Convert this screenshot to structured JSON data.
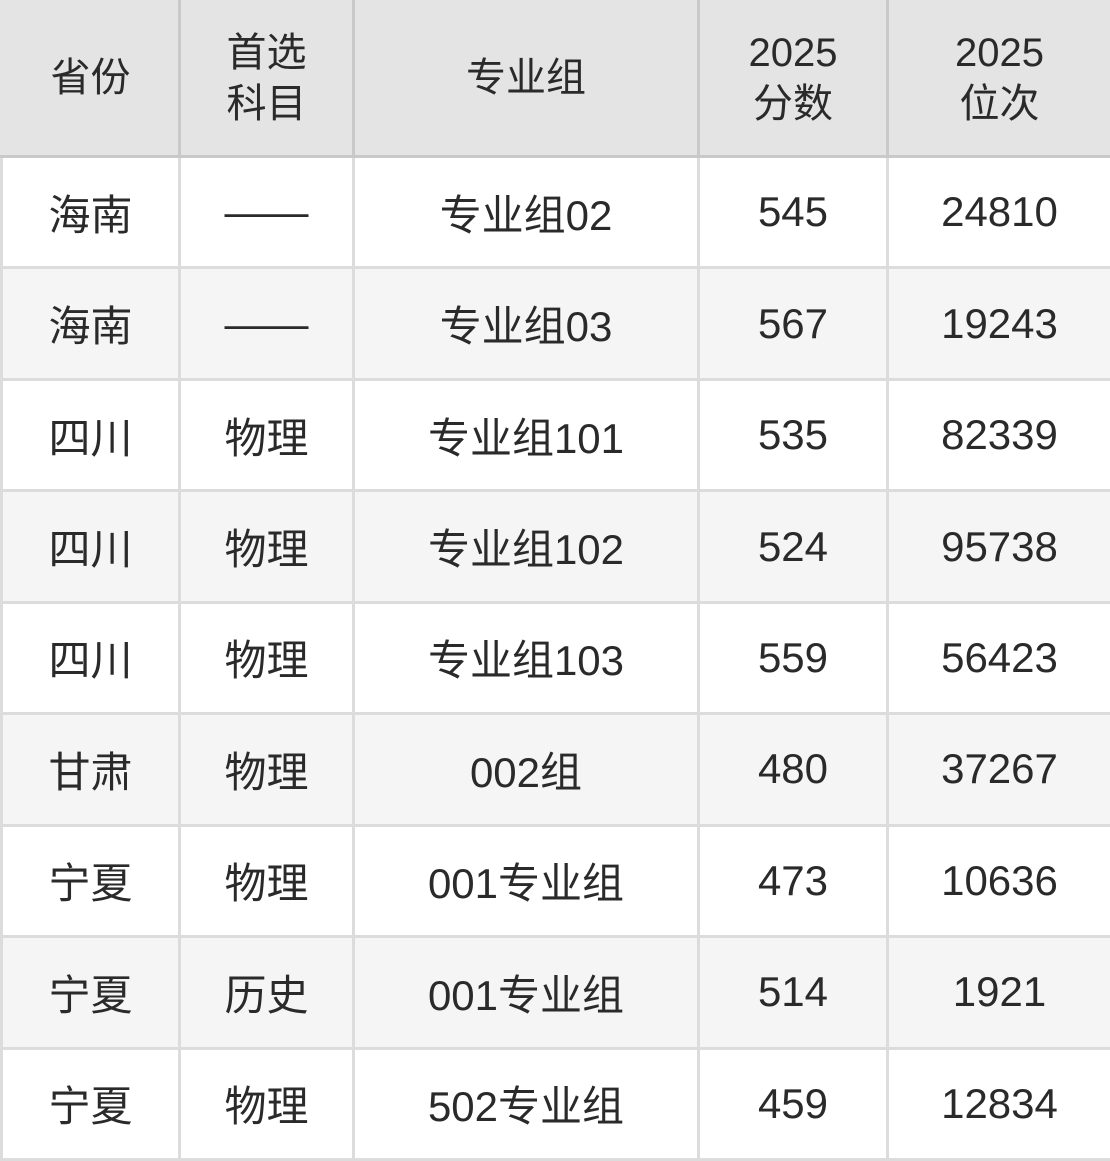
{
  "colors": {
    "header_bg": "#e4e4e4",
    "row_bg": "#ffffff",
    "row_alt_bg": "#f5f5f5",
    "grid_line": "#dcdcdc",
    "header_grid_line": "#c9c9c9",
    "text": "#2a2a2a"
  },
  "table": {
    "headers": [
      {
        "id": "province",
        "label": "省份",
        "lines": [
          "省份"
        ]
      },
      {
        "id": "preferred-subject",
        "label": "首选科目",
        "lines": [
          "首选",
          "科目"
        ]
      },
      {
        "id": "major-group",
        "label": "专业组",
        "lines": [
          "专业组"
        ]
      },
      {
        "id": "score-2025",
        "label": "2025分数",
        "lines": [
          "2025",
          "分数"
        ]
      },
      {
        "id": "rank-2025",
        "label": "2025位次",
        "lines": [
          "2025",
          "位次"
        ]
      }
    ],
    "rows": [
      {
        "province": "海南",
        "subject": "——",
        "group": "专业组02",
        "score": "545",
        "rank": "24810"
      },
      {
        "province": "海南",
        "subject": "——",
        "group": "专业组03",
        "score": "567",
        "rank": "19243"
      },
      {
        "province": "四川",
        "subject": "物理",
        "group": "专业组101",
        "score": "535",
        "rank": "82339"
      },
      {
        "province": "四川",
        "subject": "物理",
        "group": "专业组102",
        "score": "524",
        "rank": "95738"
      },
      {
        "province": "四川",
        "subject": "物理",
        "group": "专业组103",
        "score": "559",
        "rank": "56423"
      },
      {
        "province": "甘肃",
        "subject": "物理",
        "group": "002组",
        "score": "480",
        "rank": "37267"
      },
      {
        "province": "宁夏",
        "subject": "物理",
        "group": "001专业组",
        "score": "473",
        "rank": "10636"
      },
      {
        "province": "宁夏",
        "subject": "历史",
        "group": "001专业组",
        "score": "514",
        "rank": "1921"
      },
      {
        "province": "宁夏",
        "subject": "物理",
        "group": "502专业组",
        "score": "459",
        "rank": "12834"
      }
    ]
  },
  "chart_data": {
    "type": "table",
    "columns": [
      "省份",
      "首选科目",
      "专业组",
      "2025分数",
      "2025位次"
    ],
    "rows": [
      [
        "海南",
        "——",
        "专业组02",
        545,
        24810
      ],
      [
        "海南",
        "——",
        "专业组03",
        567,
        19243
      ],
      [
        "四川",
        "物理",
        "专业组101",
        535,
        82339
      ],
      [
        "四川",
        "物理",
        "专业组102",
        524,
        95738
      ],
      [
        "四川",
        "物理",
        "专业组103",
        559,
        56423
      ],
      [
        "甘肃",
        "物理",
        "002组",
        480,
        37267
      ],
      [
        "宁夏",
        "物理",
        "001专业组",
        473,
        10636
      ],
      [
        "宁夏",
        "历史",
        "001专业组",
        514,
        1921
      ],
      [
        "宁夏",
        "物理",
        "502专业组",
        459,
        12834
      ]
    ]
  }
}
